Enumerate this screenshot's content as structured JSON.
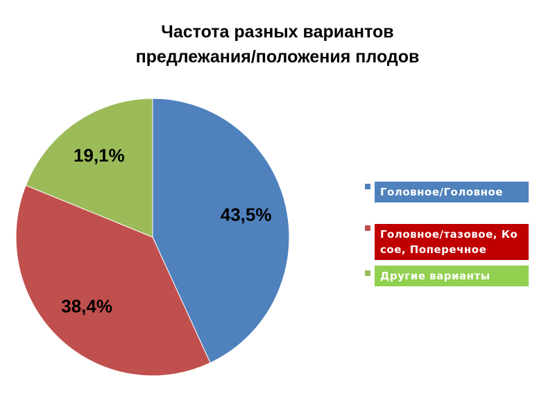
{
  "chart_data": {
    "type": "pie",
    "title": "Частота разных вариантов предлежания/положения плодов",
    "categories": [
      "Головное/Головное",
      "Головное/тазовое, Косое, Поперечное",
      "Другие варианты"
    ],
    "values": [
      43.5,
      38.4,
      19.1
    ],
    "value_labels": [
      "43,5%",
      "38,4%",
      "19,1%"
    ],
    "colors": [
      "#4f81bd",
      "#c0504d",
      "#9bbb59"
    ],
    "legend": "right"
  }
}
